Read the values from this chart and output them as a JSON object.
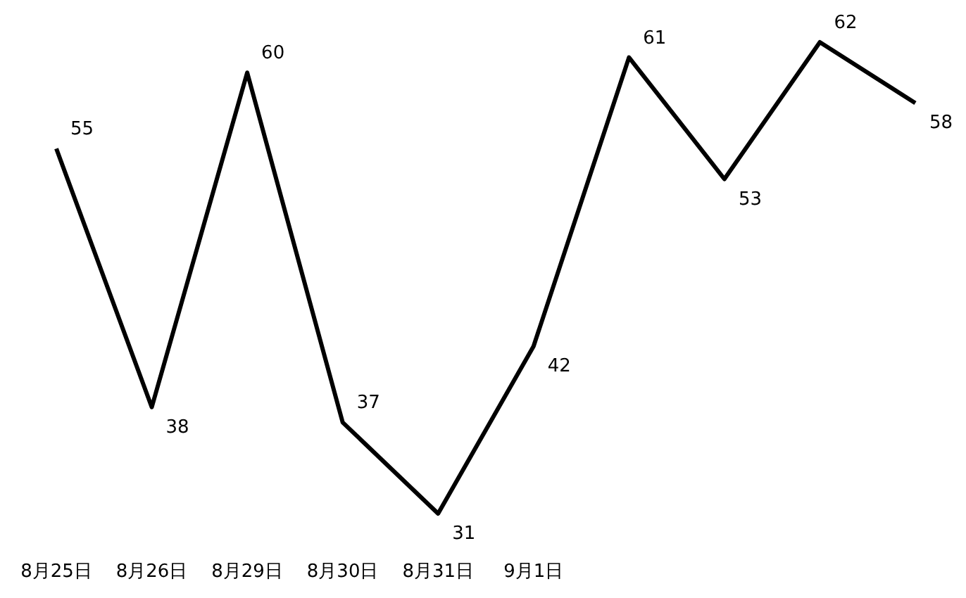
{
  "chart_data": {
    "type": "line",
    "categories": [
      "8月25日",
      "8月26日",
      "8月29日",
      "8月30日",
      "8月31日",
      "9月1日",
      null,
      null,
      null,
      null
    ],
    "series": [
      {
        "color": "#000000",
        "values": [
          55,
          38,
          60,
          37,
          31,
          42,
          61,
          53,
          62,
          58
        ]
      }
    ],
    "data_labels": true,
    "marker": "none",
    "line_style": "solid"
  }
}
